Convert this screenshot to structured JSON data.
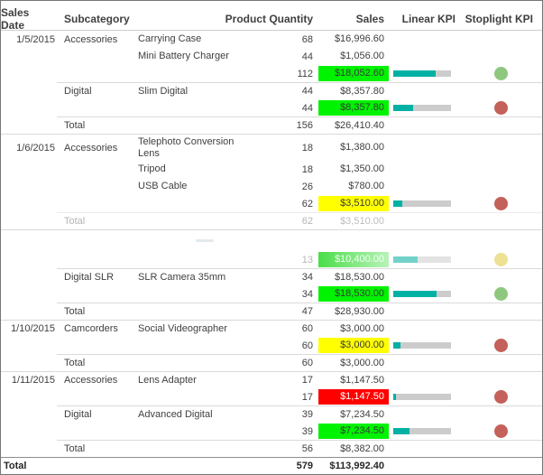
{
  "report": {
    "columns": [
      {
        "label": "Sales Date"
      },
      {
        "label": "Subcategory"
      },
      {
        "label": "Product"
      },
      {
        "label": "Quantity"
      },
      {
        "label": "Sales"
      },
      {
        "label": "Linear KPI"
      },
      {
        "label": "Stoplight KPI"
      }
    ],
    "colors": {
      "kpi_green": "#00f300",
      "kpi_yellow": "#ffff00",
      "kpi_red": "#ff0000",
      "kpi_green_faded_start": "#4ade4a",
      "kpi_green_faded_end": "#b9f2b9",
      "gauge_fill_teal": "#00b1a4",
      "gauge_track_gray": "#cccccc",
      "stoplight_green": "#8ec87e",
      "stoplight_red": "#c4615a",
      "stoplight_yellow": "#e9dc83"
    },
    "rows": [
      {
        "date": "1/5/2015",
        "subcategory": "Accessories",
        "product": "Carrying Case",
        "quantity": "68",
        "sales": "$16,996.60",
        "sales_highlight": null,
        "gauge_pct": null,
        "stoplight": null,
        "border": null
      },
      {
        "date": null,
        "subcategory": null,
        "product": "Mini Battery Charger",
        "quantity": "44",
        "sales": "$1,056.00",
        "sales_highlight": null,
        "gauge_pct": null,
        "stoplight": null,
        "border": null
      },
      {
        "date": null,
        "subcategory": null,
        "product": null,
        "quantity": "112",
        "sales": "$18,052.60",
        "sales_highlight": "green",
        "gauge_pct": 73,
        "stoplight": "green",
        "border": null
      },
      {
        "date": null,
        "subcategory": "Digital",
        "product": "Slim Digital",
        "quantity": "44",
        "sales": "$8,357.80",
        "sales_highlight": null,
        "gauge_pct": null,
        "stoplight": null,
        "border": "sub"
      },
      {
        "date": null,
        "subcategory": null,
        "product": null,
        "quantity": "44",
        "sales": "$8,357.80",
        "sales_highlight": "green",
        "gauge_pct": 35,
        "stoplight": "red",
        "border": null
      },
      {
        "date": null,
        "subcategory": "Total",
        "product": null,
        "quantity": "156",
        "sales": "$26,410.40",
        "sales_highlight": null,
        "gauge_pct": null,
        "stoplight": null,
        "border": "sub"
      },
      {
        "date": "1/6/2015",
        "subcategory": "Accessories",
        "product": "Telephoto Conversion Lens",
        "quantity": "18",
        "sales": "$1,380.00",
        "sales_highlight": null,
        "gauge_pct": null,
        "stoplight": null,
        "border": "group",
        "tall": true
      },
      {
        "date": null,
        "subcategory": null,
        "product": "Tripod",
        "quantity": "18",
        "sales": "$1,350.00",
        "sales_highlight": null,
        "gauge_pct": null,
        "stoplight": null,
        "border": null
      },
      {
        "date": null,
        "subcategory": null,
        "product": "USB Cable",
        "quantity": "26",
        "sales": "$780.00",
        "sales_highlight": null,
        "gauge_pct": null,
        "stoplight": null,
        "border": null
      },
      {
        "date": null,
        "subcategory": null,
        "product": null,
        "quantity": "62",
        "sales": "$3,510.00",
        "sales_highlight": "yellow",
        "gauge_pct": 15,
        "stoplight": "red",
        "border": null
      },
      {
        "date": null,
        "subcategory": "Total",
        "product": null,
        "quantity": "62",
        "sales": "$3,510.00",
        "sales_highlight": null,
        "gauge_pct": null,
        "stoplight": null,
        "border": "sub",
        "faded": true,
        "plain_sales_faded": true
      },
      {
        "date": null,
        "subcategory": null,
        "product": null,
        "quantity": null,
        "sales": null,
        "sales_highlight": null,
        "gauge_pct": null,
        "stoplight": null,
        "border": "group",
        "ghost": true
      },
      {
        "date": null,
        "subcategory": null,
        "product": null,
        "quantity": "13",
        "sales": "$10,400.00",
        "sales_highlight": "green-faded",
        "gauge_pct": 42,
        "stoplight": "yellow",
        "border": null,
        "faded": true
      },
      {
        "date": null,
        "subcategory": "Digital SLR",
        "product": "SLR Camera 35mm",
        "quantity": "34",
        "sales": "$18,530.00",
        "sales_highlight": null,
        "gauge_pct": null,
        "stoplight": null,
        "border": "sub"
      },
      {
        "date": null,
        "subcategory": null,
        "product": null,
        "quantity": "34",
        "sales": "$18,530.00",
        "sales_highlight": "green",
        "gauge_pct": 75,
        "stoplight": "green",
        "border": null
      },
      {
        "date": null,
        "subcategory": "Total",
        "product": null,
        "quantity": "47",
        "sales": "$28,930.00",
        "sales_highlight": null,
        "gauge_pct": null,
        "stoplight": null,
        "border": "sub"
      },
      {
        "date": "1/10/2015",
        "subcategory": "Camcorders",
        "product": "Social Videographer",
        "quantity": "60",
        "sales": "$3,000.00",
        "sales_highlight": null,
        "gauge_pct": null,
        "stoplight": null,
        "border": "group"
      },
      {
        "date": null,
        "subcategory": null,
        "product": null,
        "quantity": "60",
        "sales": "$3,000.00",
        "sales_highlight": "yellow",
        "gauge_pct": 12,
        "stoplight": "red",
        "border": null
      },
      {
        "date": null,
        "subcategory": "Total",
        "product": null,
        "quantity": "60",
        "sales": "$3,000.00",
        "sales_highlight": null,
        "gauge_pct": null,
        "stoplight": null,
        "border": "sub"
      },
      {
        "date": "1/11/2015",
        "subcategory": "Accessories",
        "product": "Lens Adapter",
        "quantity": "17",
        "sales": "$1,147.50",
        "sales_highlight": null,
        "gauge_pct": null,
        "stoplight": null,
        "border": "group"
      },
      {
        "date": null,
        "subcategory": null,
        "product": null,
        "quantity": "17",
        "sales": "$1,147.50",
        "sales_highlight": "red",
        "gauge_pct": 4,
        "stoplight": "red",
        "border": null
      },
      {
        "date": null,
        "subcategory": "Digital",
        "product": "Advanced Digital",
        "quantity": "39",
        "sales": "$7,234.50",
        "sales_highlight": null,
        "gauge_pct": null,
        "stoplight": null,
        "border": "sub"
      },
      {
        "date": null,
        "subcategory": null,
        "product": null,
        "quantity": "39",
        "sales": "$7,234.50",
        "sales_highlight": "green",
        "gauge_pct": 28,
        "stoplight": "red",
        "border": null
      },
      {
        "date": null,
        "subcategory": "Total",
        "product": null,
        "quantity": "56",
        "sales": "$8,382.00",
        "sales_highlight": null,
        "gauge_pct": null,
        "stoplight": null,
        "border": "sub"
      },
      {
        "date": "Total",
        "subcategory": null,
        "product": null,
        "quantity": "579",
        "sales": "$113,992.40",
        "sales_highlight": null,
        "gauge_pct": null,
        "stoplight": null,
        "border": null,
        "grand": true
      }
    ]
  }
}
